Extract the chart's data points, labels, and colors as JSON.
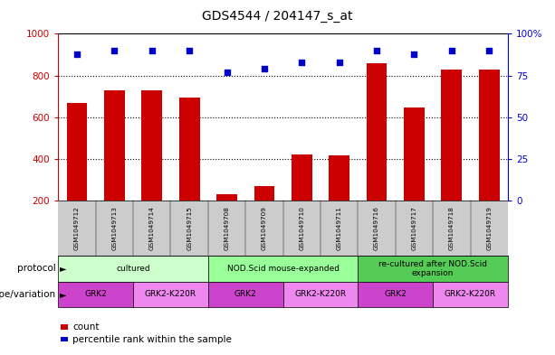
{
  "title": "GDS4544 / 204147_s_at",
  "samples": [
    "GSM1049712",
    "GSM1049713",
    "GSM1049714",
    "GSM1049715",
    "GSM1049708",
    "GSM1049709",
    "GSM1049710",
    "GSM1049711",
    "GSM1049716",
    "GSM1049717",
    "GSM1049718",
    "GSM1049719"
  ],
  "counts": [
    670,
    730,
    730,
    695,
    230,
    270,
    420,
    415,
    860,
    645,
    830,
    830
  ],
  "percentiles": [
    88,
    90,
    90,
    90,
    77,
    79,
    83,
    83,
    90,
    88,
    90,
    90
  ],
  "ylim_left": [
    200,
    1000
  ],
  "ylim_right": [
    0,
    100
  ],
  "yticks_left": [
    200,
    400,
    600,
    800,
    1000
  ],
  "yticks_right": [
    0,
    25,
    50,
    75,
    100
  ],
  "bar_color": "#cc0000",
  "dot_color": "#0000cc",
  "protocol_groups": [
    {
      "label": "cultured",
      "start": 0,
      "end": 3,
      "color": "#ccffcc"
    },
    {
      "label": "NOD.Scid mouse-expanded",
      "start": 4,
      "end": 7,
      "color": "#99ff99"
    },
    {
      "label": "re-cultured after NOD.Scid\nexpansion",
      "start": 8,
      "end": 11,
      "color": "#55cc55"
    }
  ],
  "genotype_groups": [
    {
      "label": "GRK2",
      "start": 0,
      "end": 1,
      "color": "#cc44cc"
    },
    {
      "label": "GRK2-K220R",
      "start": 2,
      "end": 3,
      "color": "#ee88ee"
    },
    {
      "label": "GRK2",
      "start": 4,
      "end": 5,
      "color": "#cc44cc"
    },
    {
      "label": "GRK2-K220R",
      "start": 6,
      "end": 7,
      "color": "#ee88ee"
    },
    {
      "label": "GRK2",
      "start": 8,
      "end": 9,
      "color": "#cc44cc"
    },
    {
      "label": "GRK2-K220R",
      "start": 10,
      "end": 11,
      "color": "#ee88ee"
    }
  ],
  "protocol_label": "protocol",
  "genotype_label": "genotype/variation",
  "legend_count": "count",
  "legend_percentile": "percentile rank within the sample",
  "bg_color": "#ffffff",
  "tick_area_bg": "#cccccc",
  "bar_width": 0.55
}
